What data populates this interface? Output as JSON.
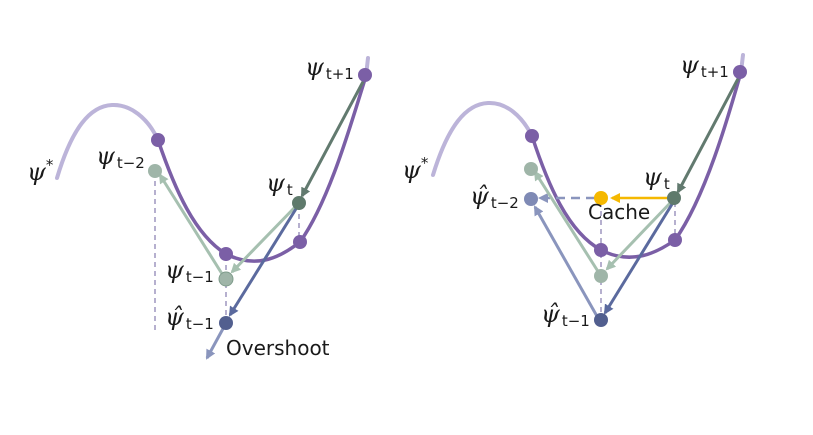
{
  "left_panel": {
    "symbols": {
      "psi_star": {
        "sym": "ψ",
        "sup": "*"
      },
      "psi_t_plus_1": {
        "sym": "ψ",
        "sub": "t+1"
      },
      "psi_t": {
        "sym": "ψ",
        "sub": "t"
      },
      "psi_t_minus_1": {
        "sym": "ψ",
        "sub": "t−1"
      },
      "psi_t_minus_2": {
        "sym": "ψ",
        "sub": "t−2"
      },
      "psi_hat_t_minus_1": {
        "sym": "ψ̂",
        "sub": "t−1"
      }
    },
    "overshoot_label": "Overshoot"
  },
  "right_panel": {
    "symbols": {
      "psi_star": {
        "sym": "ψ",
        "sup": "*"
      },
      "psi_t_plus_1": {
        "sym": "ψ",
        "sub": "t+1"
      },
      "psi_t": {
        "sym": "ψ",
        "sub": "t"
      },
      "psi_hat_t_minus_1": {
        "sym": "ψ̂",
        "sub": "t−1"
      },
      "psi_hat_t_minus_2": {
        "sym": "ψ̂",
        "sub": "t−2"
      }
    },
    "cache_label": "Cache"
  },
  "colors": {
    "curve_light": "#bcb4d9",
    "curve_dark": "#7b5fa6",
    "node_purple": "#7b5fa6",
    "node_dark_green": "#5f7a6c",
    "node_light_green": "#9fb5a8",
    "node_navy": "#525f8f",
    "node_light_navy": "#7f8ab5",
    "node_cache": "#f5b800",
    "arrow_dark_green": "#627a6f",
    "arrow_light_green": "#a6c0b0",
    "arrow_navy": "#5b6a9e",
    "arrow_light_navy": "#8a95bd",
    "arrow_cache": "#f5b800",
    "dash": "#b6b0cf"
  }
}
